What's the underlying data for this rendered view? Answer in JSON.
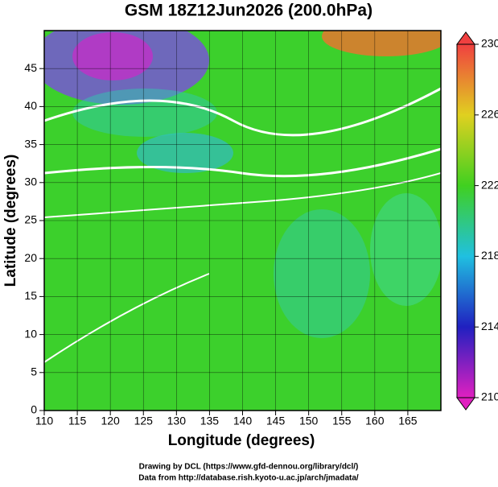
{
  "chart_data": {
    "type": "map",
    "title": "GSM 18Z12Jun2026 (200.0hPa)",
    "xlabel": "Longitude (degrees)",
    "ylabel": "Latitude  (degrees)",
    "xlim": [
      110,
      170
    ],
    "xticks": [
      110,
      115,
      120,
      125,
      130,
      135,
      140,
      145,
      150,
      155,
      160,
      165
    ],
    "ylim": [
      0,
      50
    ],
    "yticks": [
      0,
      5,
      10,
      15,
      20,
      25,
      30,
      35,
      40,
      45
    ],
    "colorbar": {
      "lim": [
        210,
        230
      ],
      "ticks": [
        210,
        214,
        218,
        222,
        226,
        230
      ]
    },
    "grid": true,
    "footer": [
      "Drawing by DCL (https://www.gfd-dennou.org/library/dcl/)",
      "Data from http://database.rish.kyoto-u.ac.jp/arch/jmadata/"
    ]
  }
}
